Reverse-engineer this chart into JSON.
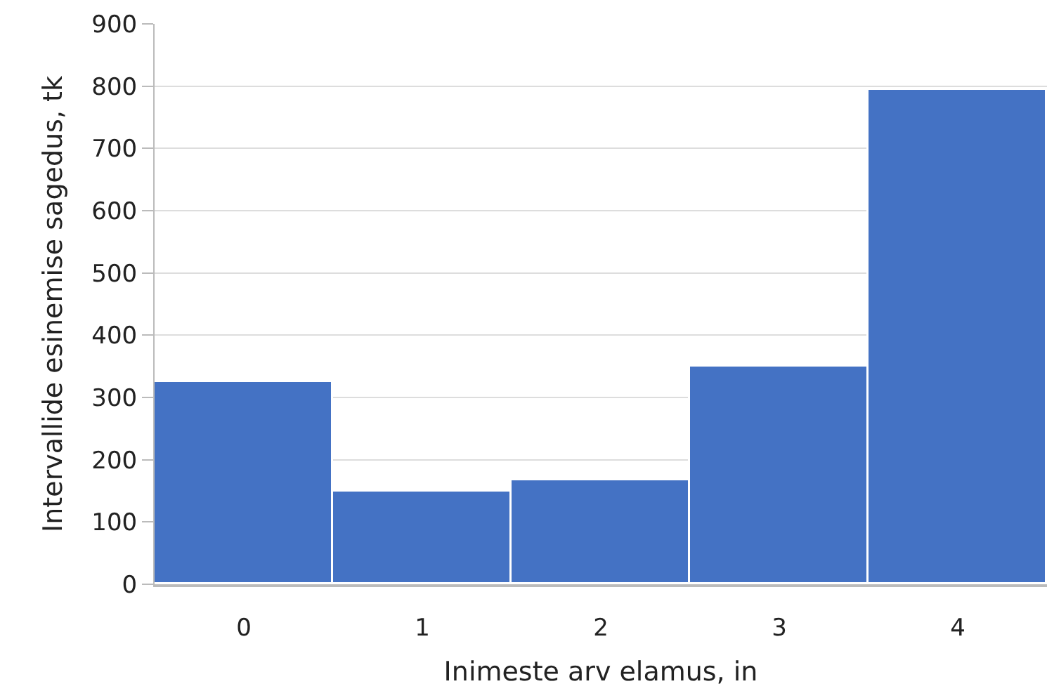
{
  "chart_data": {
    "type": "bar",
    "xlabel": "Inimeste arv elamus, in",
    "ylabel": "Intervallide esinemise sagedus, tk",
    "categories": [
      "0",
      "1",
      "2",
      "3",
      "4"
    ],
    "values": [
      325,
      150,
      167,
      349,
      795
    ],
    "color": "#4472c4",
    "ylim": [
      0,
      900
    ],
    "yticks": [
      0,
      100,
      200,
      300,
      400,
      500,
      600,
      700,
      800,
      900
    ],
    "grid": "y",
    "legend": false
  }
}
